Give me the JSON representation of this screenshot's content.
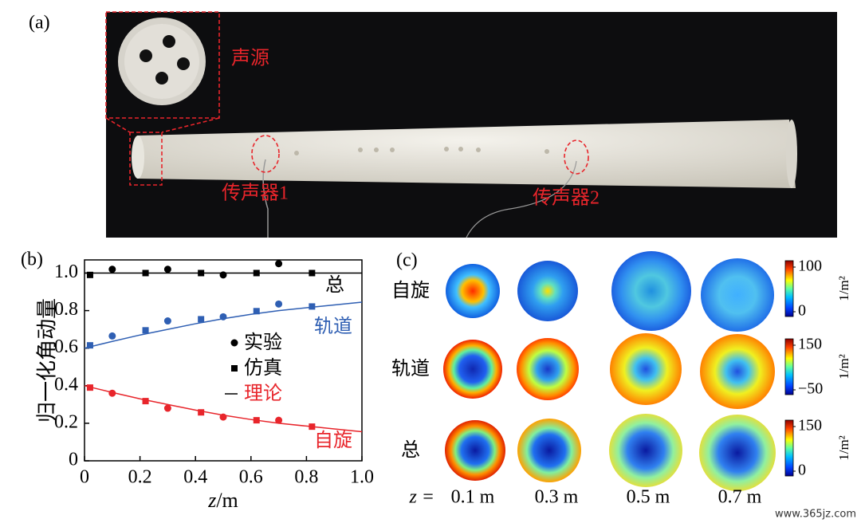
{
  "panel_a": {
    "label": "(a)",
    "source_label": "声源",
    "mic1_label": "传声器1",
    "mic2_label": "传声器2"
  },
  "chart_data": {
    "type": "line",
    "panel_label": "(b)",
    "y_label": "归一化角动量",
    "x_label": {
      "symbol": "z",
      "unit": "/m"
    },
    "xlim": [
      0,
      1
    ],
    "ylim": [
      0,
      1.07
    ],
    "xticks": [
      0,
      0.2,
      0.4,
      0.6,
      0.8,
      {
        "value": 1,
        "label": "1.0"
      }
    ],
    "yticks": [
      0,
      0.2,
      0.4,
      0.6,
      0.8,
      {
        "value": 1,
        "label": "1.0"
      }
    ],
    "grid": false,
    "legend": [
      {
        "name": "实验",
        "marker": "circle",
        "text_color": "#000000"
      },
      {
        "name": "仿真",
        "marker": "square",
        "text_color": "#000000"
      },
      {
        "name": "理论",
        "marker": "line",
        "text_color": "#e8252b"
      }
    ],
    "series": [
      {
        "name": "总",
        "color": "#000000",
        "experiment": {
          "x": [
            0.1,
            0.3,
            0.5,
            0.7
          ],
          "values": [
            1.02,
            1.02,
            0.99,
            1.05
          ]
        },
        "simulation": {
          "x": [
            0.02,
            0.22,
            0.42,
            0.62,
            0.82
          ],
          "values": [
            0.99,
            1,
            1,
            1,
            1
          ]
        },
        "theory": {
          "x": [
            0,
            1
          ],
          "values": [
            1,
            1
          ]
        }
      },
      {
        "name": "轨道",
        "color": "#2f5fb3",
        "experiment": {
          "x": [
            0.1,
            0.3,
            0.5,
            0.7
          ],
          "values": [
            0.665,
            0.745,
            0.767,
            0.835
          ]
        },
        "simulation": {
          "x": [
            0.02,
            0.22,
            0.42,
            0.62,
            0.82
          ],
          "values": [
            0.615,
            0.695,
            0.754,
            0.797,
            0.822
          ]
        },
        "theory": {
          "x": [
            0,
            0.1,
            0.2,
            0.3,
            0.4,
            0.5,
            0.6,
            0.7,
            0.8,
            0.9,
            1
          ],
          "values": [
            0.6,
            0.636,
            0.67,
            0.7,
            0.73,
            0.757,
            0.78,
            0.8,
            0.815,
            0.83,
            0.845
          ]
        }
      },
      {
        "name": "自旋",
        "color": "#e8252b",
        "experiment": {
          "x": [
            0.1,
            0.3,
            0.5,
            0.7
          ],
          "values": [
            0.36,
            0.28,
            0.233,
            0.216
          ]
        },
        "simulation": {
          "x": [
            0.02,
            0.22,
            0.42,
            0.62,
            0.82
          ],
          "values": [
            0.39,
            0.318,
            0.258,
            0.216,
            0.182
          ]
        },
        "theory": {
          "x": [
            0,
            0.1,
            0.2,
            0.3,
            0.4,
            0.5,
            0.6,
            0.7,
            0.8,
            0.9,
            1
          ],
          "values": [
            0.4,
            0.364,
            0.33,
            0.3,
            0.27,
            0.243,
            0.22,
            0.2,
            0.185,
            0.17,
            0.155
          ]
        }
      }
    ]
  },
  "panel_c": {
    "label": "(c)",
    "rows": [
      {
        "name": "自旋",
        "colorbar_ticks": [
          100,
          0
        ],
        "unit": "1/m²"
      },
      {
        "name": "轨道",
        "colorbar_ticks": [
          150,
          {
            "value": -50,
            "label": "−50"
          }
        ],
        "unit": "1/m²"
      },
      {
        "name": "总",
        "colorbar_ticks": [
          150,
          0
        ],
        "unit": "1/m²"
      }
    ],
    "z_prefix": "z = ",
    "positions": [
      "0.1 m",
      "0.3 m",
      "0.5 m",
      "0.7 m"
    ]
  },
  "watermark": "www.365jz.com"
}
